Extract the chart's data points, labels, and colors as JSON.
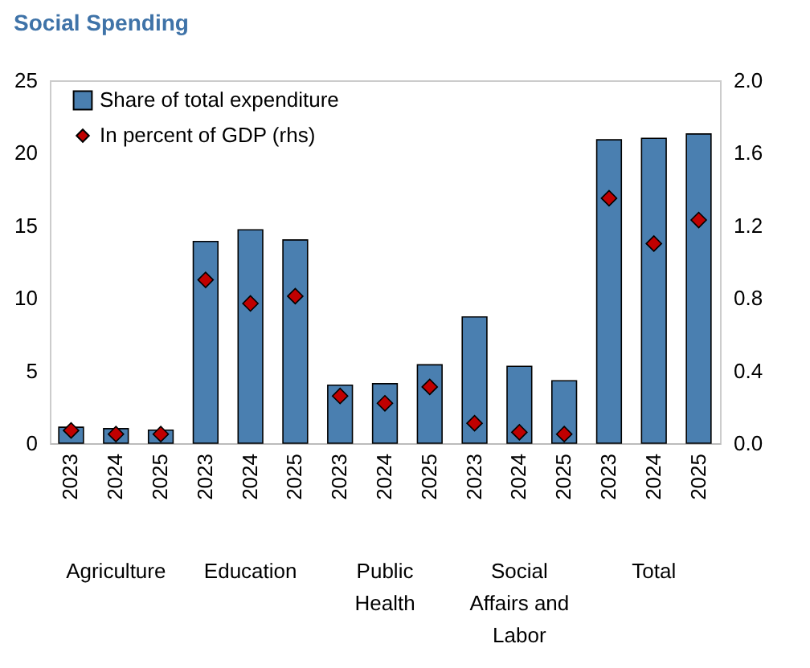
{
  "chart_data": {
    "type": "bar",
    "title": "Social Spending",
    "categories": [
      "2023",
      "2024",
      "2025",
      "2023",
      "2024",
      "2025",
      "2023",
      "2024",
      "2025",
      "2023",
      "2024",
      "2025",
      "2023",
      "2024",
      "2025"
    ],
    "annotations": [
      "Agriculture",
      "Education",
      "Public Health",
      "Social Affairs and Labor",
      "Total"
    ],
    "series": [
      {
        "name": "Share of total expenditure",
        "color": "#4a7fb0",
        "values": [
          1.1,
          1.0,
          0.9,
          13.9,
          14.7,
          14.0,
          4.0,
          4.1,
          5.4,
          8.7,
          5.3,
          4.3,
          20.9,
          21.0,
          21.3
        ]
      },
      {
        "name": "In percent of GDP (rhs)",
        "type": "scatter",
        "axis": "y2",
        "marker": "diamond",
        "color": "#c00000",
        "values": [
          0.07,
          0.05,
          0.05,
          0.9,
          0.77,
          0.81,
          0.26,
          0.22,
          0.31,
          0.11,
          0.06,
          0.05,
          1.35,
          1.1,
          1.23
        ]
      }
    ],
    "ylim": [
      0,
      25
    ],
    "yticks": [
      0,
      5,
      10,
      15,
      20,
      25
    ],
    "y2lim": [
      0,
      2
    ],
    "y2ticks": [
      {
        "value": 0,
        "label": "0.0"
      },
      {
        "value": 0.4,
        "label": "0.4"
      },
      {
        "value": 0.8,
        "label": "0.8"
      },
      {
        "value": 1.2,
        "label": "1.2"
      },
      {
        "value": 1.6,
        "label": "1.6"
      },
      {
        "value": 2,
        "label": "2.0"
      }
    ],
    "legend": "top left",
    "grid": false
  }
}
